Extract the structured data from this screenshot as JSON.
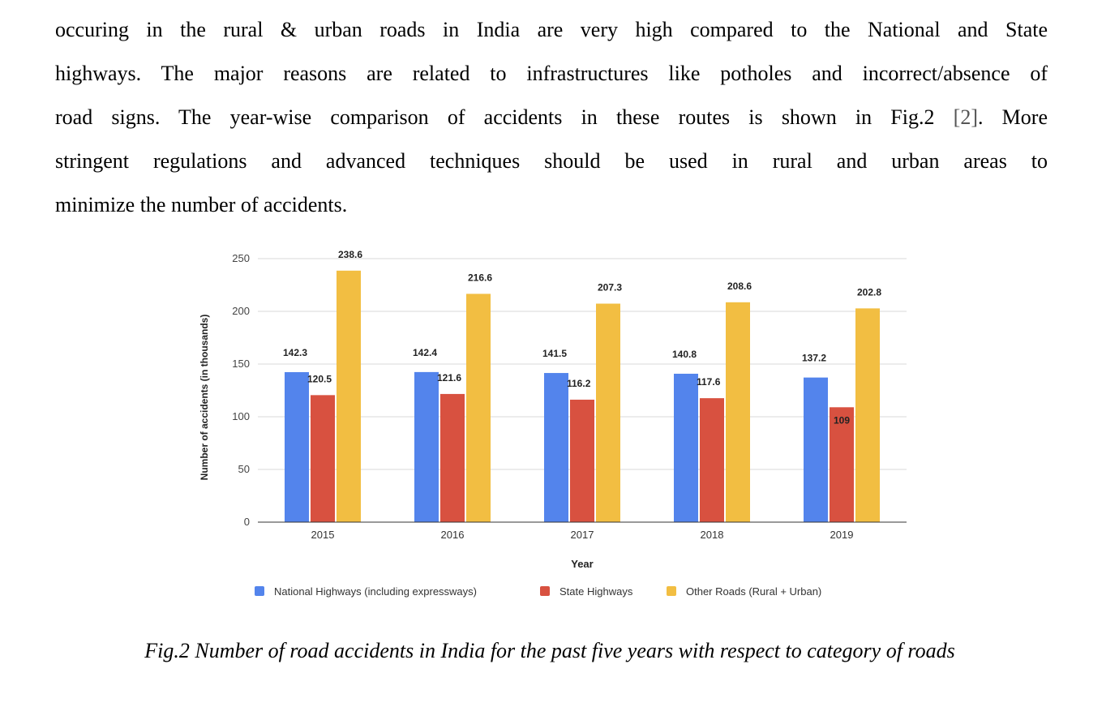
{
  "paragraph": {
    "line1": "occuring in the rural & urban roads in India are very high compared to the National and State",
    "line2": "highways. The major reasons are related to infrastructures like potholes and incorrect/absence of",
    "line3_before": "road signs. The year-wise comparison of accidents in these routes is shown in Fig.2",
    "line3_ref": "[2]",
    "line3_after": ". More",
    "line4": "stringent regulations and advanced  techniques should be used in rural and urban areas  to",
    "line5": "minimize the number of accidents."
  },
  "chart_data": {
    "type": "bar",
    "title": "",
    "xlabel": "Year",
    "ylabel": "Number of accidents (in thousands)",
    "ylim": [
      0,
      250
    ],
    "yticks": [
      0,
      50,
      100,
      150,
      200,
      250
    ],
    "grid": true,
    "legend_position": "bottom",
    "categories": [
      "2015",
      "2016",
      "2017",
      "2018",
      "2019"
    ],
    "series": [
      {
        "name": "National Highways (including expressways)",
        "color": "#5384ec",
        "values": [
          142.3,
          142.4,
          141.5,
          140.8,
          137.2
        ]
      },
      {
        "name": "State Highways",
        "color": "#d85140",
        "values": [
          120.5,
          121.6,
          116.2,
          117.6,
          109
        ]
      },
      {
        "name": "Other Roads (Rural + Urban)",
        "color": "#f2be42",
        "values": [
          238.6,
          216.6,
          207.3,
          208.6,
          202.8
        ]
      }
    ]
  },
  "caption": "Fig.2 Number of road accidents in India for the past five years with respect to category of roads"
}
